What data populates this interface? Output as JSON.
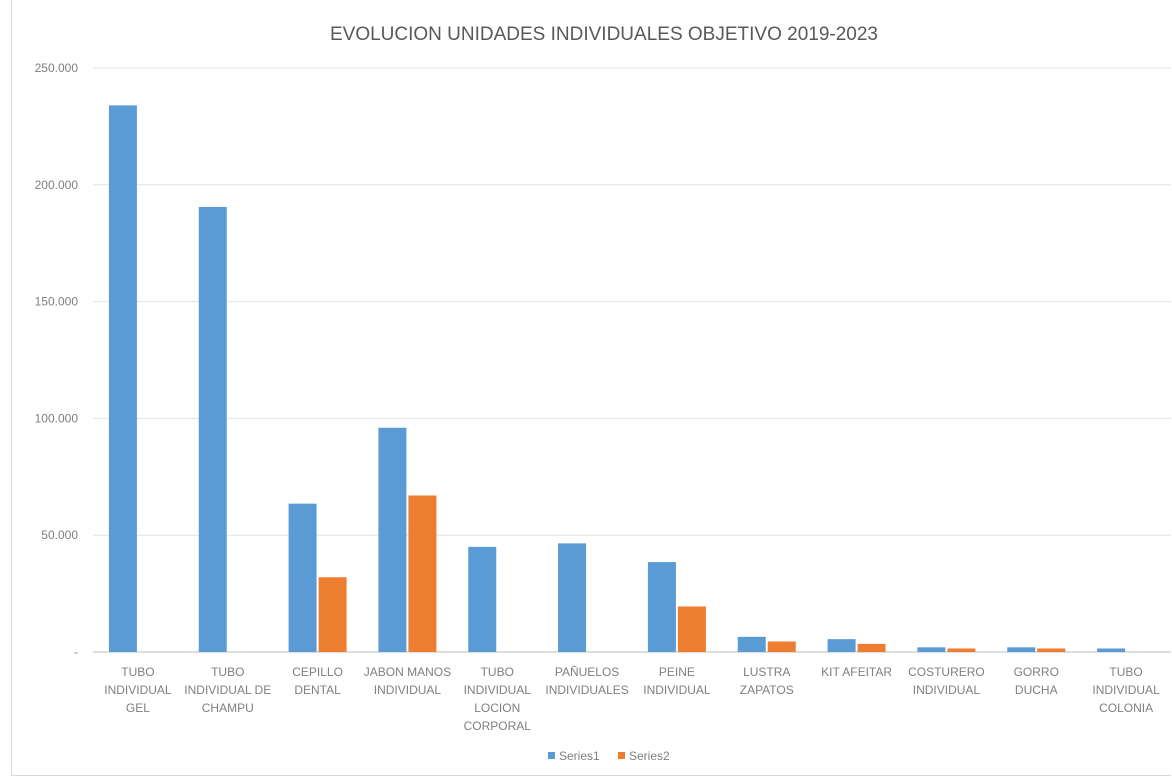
{
  "chart_data": {
    "type": "bar",
    "title": "EVOLUCION UNIDADES INDIVIDUALES OBJETIVO 2019-2023",
    "categories": [
      [
        "TUBO",
        "INDIVIDUAL",
        "GEL"
      ],
      [
        "TUBO",
        "INDIVIDUAL DE",
        "CHAMPU"
      ],
      [
        "CEPILLO",
        "DENTAL"
      ],
      [
        "JABON MANOS",
        "INDIVIDUAL"
      ],
      [
        "TUBO",
        "INDIVIDUAL",
        "LOCION",
        "CORPORAL"
      ],
      [
        "PAÑUELOS",
        "INDIVIDUALES"
      ],
      [
        "PEINE",
        "INDIVIDUAL"
      ],
      [
        "LUSTRA",
        "ZAPATOS"
      ],
      [
        "KIT AFEITAR"
      ],
      [
        "COSTURERO",
        "INDIVIDUAL"
      ],
      [
        "GORRO",
        "DUCHA"
      ],
      [
        "TUBO",
        "INDIVIDUAL",
        "COLONIA"
      ]
    ],
    "series": [
      {
        "name": "Series1",
        "color": "#5b9bd5",
        "values": [
          234000,
          190500,
          63500,
          96000,
          45000,
          46500,
          38500,
          6500,
          5500,
          2000,
          2000,
          1500
        ]
      },
      {
        "name": "Series2",
        "color": "#ed7d31",
        "values": [
          0,
          0,
          32000,
          67000,
          0,
          0,
          19500,
          4500,
          3500,
          1500,
          1500,
          0
        ]
      }
    ],
    "ylim": [
      0,
      250000
    ],
    "yticks": [
      "-",
      "50.000",
      "100.000",
      "150.000",
      "200.000",
      "250.000"
    ],
    "ytick_values": [
      0,
      50000,
      100000,
      150000,
      200000,
      250000
    ],
    "grid": true,
    "legend": "bottom",
    "xlabel": "",
    "ylabel": ""
  }
}
